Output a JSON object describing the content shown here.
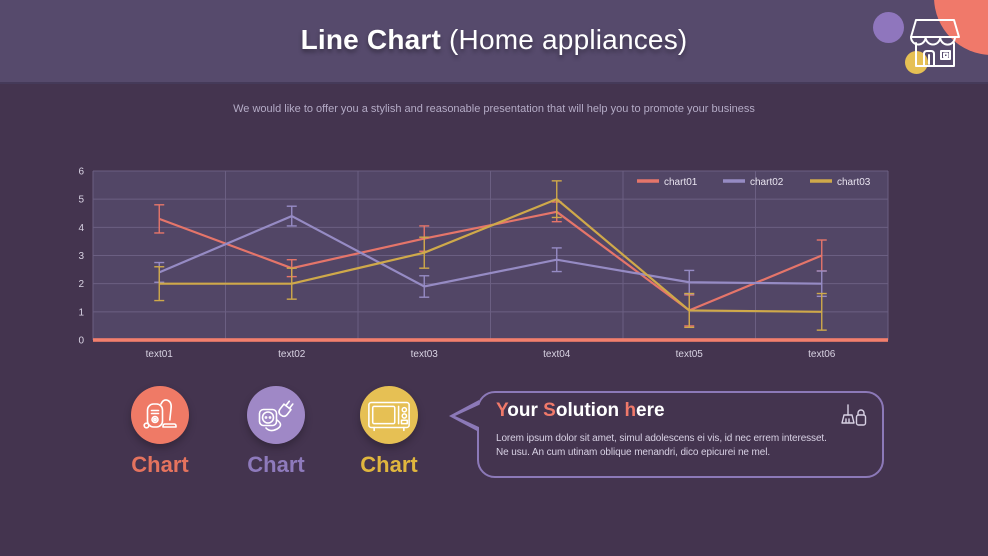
{
  "header": {
    "title_bold": "Line Chart",
    "title_rest": " (Home appliances)"
  },
  "subtitle": "We would like to offer you a stylish and reasonable presentation that will help you to promote your business",
  "chart_data": {
    "type": "line",
    "categories": [
      "text01",
      "text02",
      "text03",
      "text04",
      "text05",
      "text06"
    ],
    "series": [
      {
        "name": "chart01",
        "color": "#e5756a",
        "values": [
          4.3,
          2.55,
          3.6,
          4.55,
          1.05,
          3.0
        ],
        "errors": [
          0.5,
          0.3,
          0.45,
          0.35,
          0.55,
          0.55
        ]
      },
      {
        "name": "chart02",
        "color": "#968bc4",
        "values": [
          2.4,
          4.4,
          1.9,
          2.85,
          2.05,
          2.0
        ],
        "errors": [
          0.35,
          0.35,
          0.38,
          0.42,
          0.42,
          0.45
        ]
      },
      {
        "name": "chart03",
        "color": "#cfa94a",
        "values": [
          2.0,
          2.0,
          3.1,
          5.0,
          1.05,
          1.0
        ],
        "errors": [
          0.6,
          0.55,
          0.55,
          0.65,
          0.6,
          0.65
        ]
      }
    ],
    "title": "",
    "xlabel": "",
    "ylabel": "",
    "ylim": [
      0,
      6
    ],
    "ytick_step": 1,
    "grid": true,
    "legend_position": "top-right",
    "error_bars": true
  },
  "chart_items": [
    {
      "label": "Chart",
      "icon": "vacuum-cleaner-icon",
      "circle_color": "#ef7a66",
      "label_color": "#e5735e"
    },
    {
      "label": "Chart",
      "icon": "power-plug-icon",
      "circle_color": "#9f88c6",
      "label_color": "#8e7abc"
    },
    {
      "label": "Chart",
      "icon": "microwave-icon",
      "circle_color": "#e6c054",
      "label_color": "#e0b63e"
    }
  ],
  "solution": {
    "title_parts": [
      {
        "text": "Y",
        "accent": true
      },
      {
        "text": "our "
      },
      {
        "text": "S",
        "accent": true
      },
      {
        "text": "olution "
      },
      {
        "text": "h",
        "accent": true
      },
      {
        "text": "ere"
      }
    ],
    "body_lines": [
      "Lorem ipsum dolor sit amet, simul adolescens ei vis, id nec errem interesset.",
      "Ne usu. An cum utinam oblique menandri, dico epicurei ne mel."
    ]
  },
  "colors": {
    "page_bg": "#44344f",
    "header_bg": "#564a6c",
    "plot_bg": "#524666",
    "grid": "#6b5f82",
    "baseline": "#f37f6d",
    "accent_coral": "#f0796a",
    "decor_coral": "#f0796a",
    "decor_purple": "#8f76bd",
    "decor_yellow": "#e6c054"
  }
}
